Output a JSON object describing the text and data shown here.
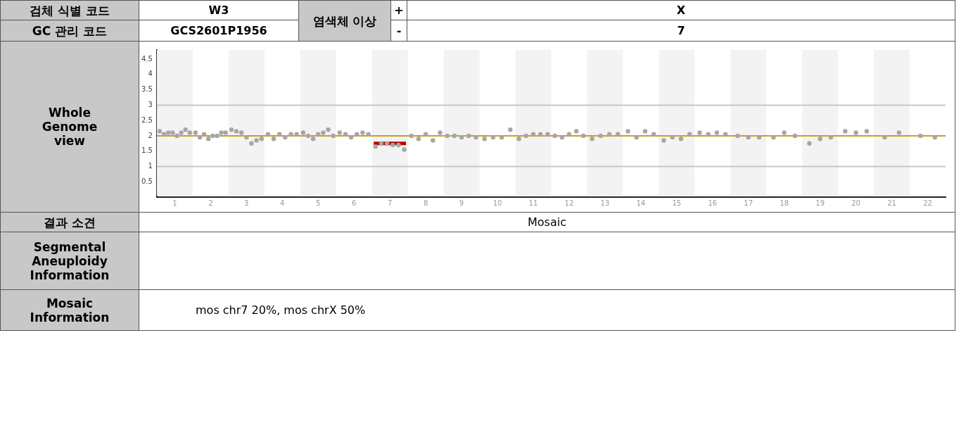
{
  "chart_data": [
    {
      "type": "other",
      "annotations": [
        "검체 식별 코드",
        "W3",
        "염색체 이상",
        "+",
        "X",
        "GC 관리 코드",
        "GCS2601P1956",
        "-",
        "7",
        "Whole Genome view",
        "결과 소견",
        "Mosaic",
        "Segmental Aneuploidy Information",
        "Mosaic Information",
        "mos chr7 20%, mos chrX 50%"
      ]
    },
    {
      "type": "scatter",
      "legend": false,
      "grid": false,
      "xlim": [
        0.5,
        22.5
      ],
      "ylim": [
        0,
        4.8
      ],
      "xticks": [
        1,
        2,
        3,
        4,
        5,
        6,
        7,
        8,
        9,
        10,
        11,
        12,
        13,
        14,
        15,
        16,
        17,
        18,
        19,
        20,
        21,
        22
      ],
      "yticks": [
        0.5,
        1,
        1.5,
        2,
        2.5,
        3,
        3.5,
        4,
        4.5
      ],
      "bands": [
        {
          "axis": "x",
          "from": 0.5,
          "to": 1.5,
          "color": "#f3f3f3"
        },
        {
          "axis": "x",
          "from": 2.5,
          "to": 3.5,
          "color": "#f3f3f3"
        },
        {
          "axis": "x",
          "from": 4.5,
          "to": 5.5,
          "color": "#f3f3f3"
        },
        {
          "axis": "x",
          "from": 6.5,
          "to": 7.5,
          "color": "#f3f3f3"
        },
        {
          "axis": "x",
          "from": 8.5,
          "to": 9.5,
          "color": "#f3f3f3"
        },
        {
          "axis": "x",
          "from": 10.5,
          "to": 11.5,
          "color": "#f3f3f3"
        },
        {
          "axis": "x",
          "from": 12.5,
          "to": 13.5,
          "color": "#f3f3f3"
        },
        {
          "axis": "x",
          "from": 14.5,
          "to": 15.5,
          "color": "#f3f3f3"
        },
        {
          "axis": "x",
          "from": 16.5,
          "to": 17.5,
          "color": "#f3f3f3"
        },
        {
          "axis": "x",
          "from": 18.5,
          "to": 19.5,
          "color": "#f3f3f3"
        },
        {
          "axis": "x",
          "from": 20.5,
          "to": 21.5,
          "color": "#f3f3f3"
        }
      ],
      "ref_lines": [
        {
          "axis": "y",
          "value": 3,
          "color": "#c8c8c8"
        },
        {
          "axis": "y",
          "value": 1,
          "color": "#c8c8c8"
        },
        {
          "axis": "y",
          "value": 2,
          "color": "#c8a020"
        }
      ],
      "series": [
        {
          "type": "scatter",
          "marker": "circle",
          "color": "#a6a6a6",
          "x": [
            0.58,
            0.7,
            0.82,
            0.94,
            1.06,
            1.18,
            1.3,
            1.42,
            1.58,
            1.7,
            1.82,
            1.94,
            2.06,
            2.18,
            2.3,
            2.42,
            2.58,
            2.72,
            2.86,
            3,
            3.14,
            3.28,
            3.42,
            3.6,
            3.76,
            3.92,
            4.08,
            4.24,
            4.4,
            4.58,
            4.72,
            4.86,
            5,
            5.14,
            5.28,
            5.42,
            5.6,
            5.76,
            5.92,
            6.08,
            6.24,
            6.4,
            6.6,
            6.76,
            6.92,
            7.08,
            7.24,
            7.4,
            7.6,
            7.8,
            8,
            8.2,
            8.4,
            8.6,
            8.8,
            9,
            9.2,
            9.4,
            9.64,
            9.88,
            10.12,
            10.36,
            10.6,
            10.8,
            11,
            11.2,
            11.4,
            11.6,
            11.8,
            12,
            12.2,
            12.4,
            12.64,
            12.88,
            13.12,
            13.36,
            13.64,
            13.88,
            14.12,
            14.36,
            14.64,
            14.88,
            15.12,
            15.36,
            15.64,
            15.88,
            16.12,
            16.36,
            16.7,
            17,
            17.3,
            17.7,
            18,
            18.3,
            18.7,
            19,
            19.3,
            19.7,
            20,
            20.3,
            20.8,
            21.2,
            21.8,
            22.2
          ],
          "values": [
            2.15,
            2.05,
            2.1,
            2.1,
            2.0,
            2.1,
            2.2,
            2.1,
            2.1,
            1.95,
            2.05,
            1.9,
            2.0,
            2.0,
            2.1,
            2.1,
            2.2,
            2.15,
            2.1,
            1.95,
            1.75,
            1.85,
            1.9,
            2.05,
            1.9,
            2.05,
            1.95,
            2.05,
            2.05,
            2.1,
            2.0,
            1.9,
            2.05,
            2.1,
            2.2,
            2.0,
            2.1,
            2.05,
            1.95,
            2.05,
            2.1,
            2.05,
            1.65,
            1.75,
            1.75,
            1.7,
            1.7,
            1.55,
            2.0,
            1.9,
            2.05,
            1.85,
            2.1,
            2.0,
            2.0,
            1.95,
            2.0,
            1.95,
            1.9,
            1.95,
            1.95,
            2.2,
            1.9,
            2.0,
            2.05,
            2.05,
            2.05,
            2.0,
            1.95,
            2.05,
            2.15,
            2.0,
            1.9,
            2.0,
            2.05,
            2.05,
            2.15,
            1.95,
            2.15,
            2.05,
            1.85,
            1.95,
            1.9,
            2.05,
            2.1,
            2.05,
            2.1,
            2.05,
            2.0,
            1.95,
            1.95,
            1.95,
            2.1,
            2.0,
            1.75,
            1.9,
            1.95,
            2.15,
            2.1,
            2.15,
            1.95,
            2.1,
            2.0,
            1.95
          ]
        },
        {
          "type": "line",
          "marker": "none",
          "color": "#c00000",
          "x": [
            6.55,
            7.45
          ],
          "values": [
            1.75,
            1.75
          ]
        }
      ]
    }
  ]
}
